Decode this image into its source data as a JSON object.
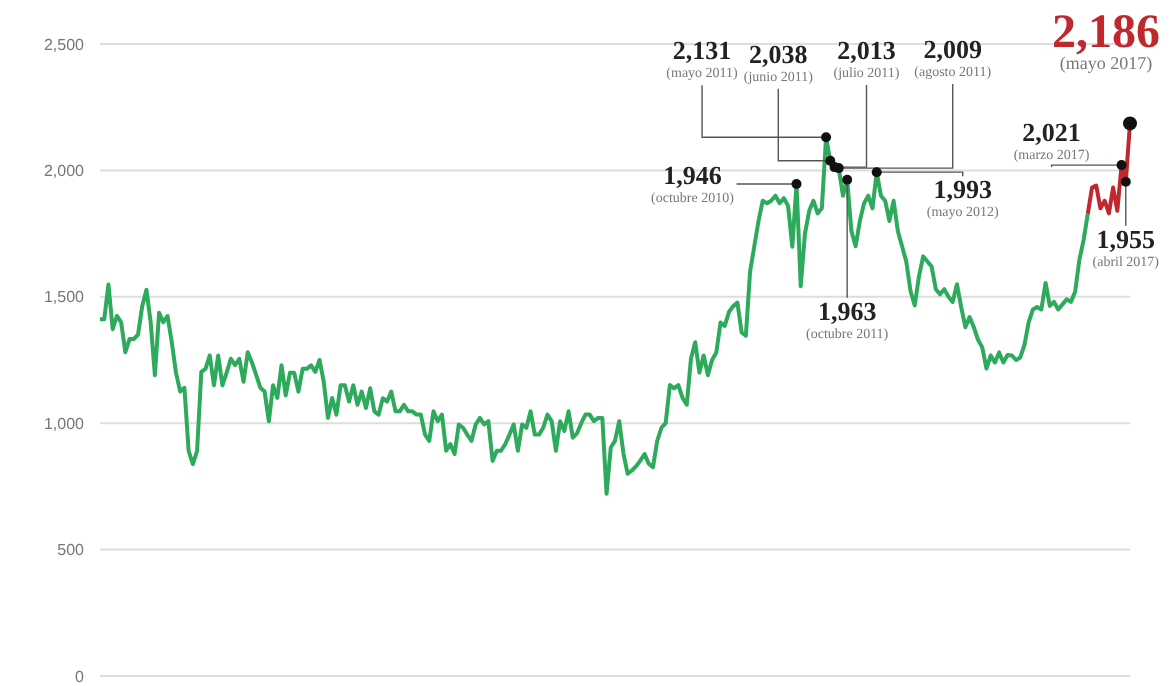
{
  "chart_data": {
    "type": "line",
    "categories": [
      null,
      null,
      null,
      null,
      null,
      null,
      null,
      null,
      null,
      null,
      null,
      null,
      null,
      null,
      null,
      null,
      null,
      null,
      null,
      null,
      null,
      null,
      null,
      null,
      null,
      null,
      null,
      null,
      null,
      null,
      null,
      null,
      null,
      null,
      null,
      null,
      null,
      null,
      null,
      null,
      null,
      null,
      null,
      null,
      null,
      null,
      null,
      null,
      null,
      null,
      null,
      null,
      null,
      null,
      null,
      null,
      null,
      null,
      null,
      null,
      null,
      null,
      null,
      null,
      null,
      null,
      null,
      null,
      null,
      null,
      null,
      null,
      null,
      null,
      null,
      null,
      null,
      null,
      null,
      null,
      null,
      null,
      null,
      null,
      null,
      null,
      null,
      null,
      null,
      null,
      null,
      null,
      null,
      null,
      null,
      null,
      null,
      null,
      null,
      null,
      null,
      null,
      null,
      null,
      null,
      null,
      null,
      null,
      null,
      null,
      null,
      null,
      null,
      null,
      null,
      null,
      null,
      null,
      null,
      null,
      null,
      null,
      null,
      null,
      null,
      null,
      null,
      null,
      null,
      null,
      null,
      null,
      null,
      null,
      null,
      null,
      null,
      null,
      null,
      null,
      null,
      null,
      null,
      null,
      null,
      null,
      null,
      null,
      null,
      null,
      null,
      null,
      null,
      null,
      null,
      null,
      null,
      null,
      null,
      null,
      null,
      null,
      null,
      null,
      null,
      null,
      null,
      null,
      null,
      null,
      null,
      null,
      null,
      null,
      null,
      null,
      null,
      null,
      null,
      null,
      null,
      null,
      null,
      null,
      null,
      null,
      null,
      null,
      null,
      null,
      null,
      null,
      null,
      null,
      null,
      null,
      null,
      null,
      null,
      null,
      null,
      null,
      null,
      null,
      null,
      null,
      null,
      null,
      null,
      null,
      null,
      null,
      null,
      null,
      null,
      null,
      null,
      null,
      null,
      null,
      null,
      null,
      null,
      null,
      null,
      null,
      null,
      null,
      null,
      null,
      null,
      null,
      null,
      null,
      null,
      null,
      null,
      null,
      null,
      null,
      null,
      null,
      null,
      null,
      null
    ],
    "series": [
      {
        "color": "#2eaa5c",
        "values": [
          1411,
          1411,
          1549,
          1372,
          1424,
          1400,
          1281,
          1333,
          1333,
          1350,
          1463,
          1528,
          1400,
          1190,
          1437,
          1400,
          1424,
          1320,
          1200,
          1125,
          1140,
          890,
          838,
          890,
          1203,
          1215,
          1268,
          1150,
          1268,
          1150,
          1200,
          1255,
          1230,
          1255,
          1164,
          1281,
          1240,
          1190,
          1140,
          1125,
          1008,
          1150,
          1100,
          1229,
          1110,
          1200,
          1200,
          1125,
          1215,
          1215,
          1229,
          1203,
          1250,
          1164,
          1021,
          1100,
          1034,
          1150,
          1150,
          1086,
          1150,
          1073,
          1125,
          1060,
          1138,
          1047,
          1034,
          1099,
          1086,
          1125,
          1047,
          1047,
          1073,
          1047,
          1047,
          1034,
          1034,
          955,
          930,
          1047,
          1008,
          1034,
          891,
          917,
          878,
          995,
          982,
          955,
          930,
          995,
          1021,
          995,
          1008,
          851,
          891,
          891,
          917,
          955,
          995,
          891,
          995,
          982,
          1047,
          955,
          955,
          982,
          1034,
          1008,
          891,
          1008,
          969,
          1047,
          943,
          960,
          1000,
          1034,
          1034,
          1008,
          1021,
          1021,
          721,
          904,
          930,
          1008,
          880,
          800,
          813,
          830,
          852,
          878,
          840,
          826,
          930,
          982,
          1000,
          1151,
          1138,
          1151,
          1100,
          1073,
          1255,
          1320,
          1200,
          1268,
          1190,
          1250,
          1280,
          1398,
          1385,
          1440,
          1463,
          1477,
          1359,
          1346,
          1600,
          1700,
          1800,
          1880,
          1870,
          1880,
          1900,
          1870,
          1890,
          1860,
          1698,
          1946,
          1542,
          1750,
          1840,
          1880,
          1830,
          1850,
          2131,
          2038,
          2013,
          2009,
          1900,
          1963,
          1760,
          1700,
          1800,
          1870,
          1900,
          1850,
          1993,
          1900,
          1880,
          1800,
          1880,
          1760,
          1700,
          1640,
          1523,
          1466,
          1580,
          1660,
          1640,
          1620,
          1530,
          1510,
          1530,
          1500,
          1480,
          1550,
          1460,
          1380,
          1420,
          1380,
          1330,
          1300,
          1216,
          1268,
          1240,
          1280,
          1240,
          1270,
          1268,
          1250,
          1260,
          1310,
          1400,
          1450,
          1460,
          1450,
          1555,
          1464,
          1480,
          1450,
          1470,
          1490,
          1480,
          1520,
          1646,
          1724,
          1828,
          null,
          null,
          null,
          null,
          null,
          null,
          null,
          null,
          null,
          null
        ]
      },
      {
        "color": "#c0282d",
        "values": [
          null,
          null,
          null,
          null,
          null,
          null,
          null,
          null,
          null,
          null,
          null,
          null,
          null,
          null,
          null,
          null,
          null,
          null,
          null,
          null,
          null,
          null,
          null,
          null,
          null,
          null,
          null,
          null,
          null,
          null,
          null,
          null,
          null,
          null,
          null,
          null,
          null,
          null,
          null,
          null,
          null,
          null,
          null,
          null,
          null,
          null,
          null,
          null,
          null,
          null,
          null,
          null,
          null,
          null,
          null,
          null,
          null,
          null,
          null,
          null,
          null,
          null,
          null,
          null,
          null,
          null,
          null,
          null,
          null,
          null,
          null,
          null,
          null,
          null,
          null,
          null,
          null,
          null,
          null,
          null,
          null,
          null,
          null,
          null,
          null,
          null,
          null,
          null,
          null,
          null,
          null,
          null,
          null,
          null,
          null,
          null,
          null,
          null,
          null,
          null,
          null,
          null,
          null,
          null,
          null,
          null,
          null,
          null,
          null,
          null,
          null,
          null,
          null,
          null,
          null,
          null,
          null,
          null,
          null,
          null,
          null,
          null,
          null,
          null,
          null,
          null,
          null,
          null,
          null,
          null,
          null,
          null,
          null,
          null,
          null,
          null,
          null,
          null,
          null,
          null,
          null,
          null,
          null,
          null,
          null,
          null,
          null,
          null,
          null,
          null,
          null,
          null,
          null,
          null,
          null,
          null,
          null,
          null,
          null,
          null,
          null,
          null,
          null,
          null,
          null,
          null,
          null,
          null,
          null,
          null,
          null,
          null,
          null,
          null,
          null,
          null,
          null,
          null,
          null,
          null,
          null,
          null,
          null,
          null,
          null,
          null,
          null,
          null,
          null,
          null,
          null,
          null,
          null,
          null,
          null,
          null,
          null,
          null,
          null,
          null,
          null,
          null,
          null,
          null,
          null,
          null,
          null,
          null,
          null,
          null,
          null,
          null,
          null,
          null,
          null,
          null,
          null,
          null,
          null,
          null,
          null,
          null,
          null,
          null,
          null,
          null,
          null,
          null,
          null,
          null,
          null,
          null,
          null,
          null,
          1828,
          1932,
          1940,
          1850,
          1880,
          1830,
          1932,
          1840,
          2021,
          1955,
          2186
        ]
      }
    ],
    "ylim": [
      0,
      2500
    ],
    "yticks": [
      {
        "value": 0,
        "label": "0"
      },
      {
        "value": 500,
        "label": "500"
      },
      {
        "value": 1000,
        "label": "1,000"
      },
      {
        "value": 1500,
        "label": "1,500"
      },
      {
        "value": 2000,
        "label": "2,000"
      },
      {
        "value": 2500,
        "label": "2,500"
      }
    ],
    "grid": "y",
    "tick_labels": "y",
    "annotations": [
      "2,131\n(mayo 2011)",
      "2,038\n(junio 2011)",
      "2,013\n(julio 2011)",
      "2,009\n(agosto 2011)",
      "1,946\n(octubre 2010)",
      "1,963\n(octubre 2011)",
      "1,993\n(mayo 2012)",
      "2,021\n(marzo 2017)",
      "1,955\n(abril 2017)",
      "2,186\n(mayo 2017)"
    ]
  }
}
